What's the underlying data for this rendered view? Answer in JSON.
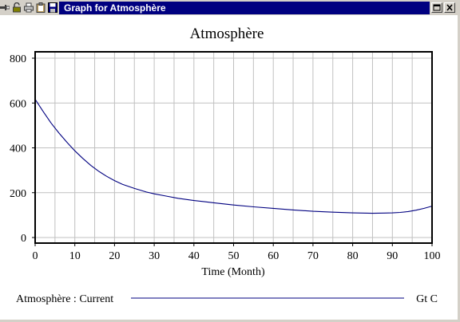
{
  "window": {
    "title": "Graph for Atmosphère",
    "toolbar_icons": [
      "pin-icon",
      "lock-icon",
      "print-icon",
      "clipboard-icon",
      "save-icon"
    ],
    "controls": [
      "restore-icon",
      "close-icon"
    ]
  },
  "colors": {
    "titlebar_active": "#000080",
    "series_line": "#000080",
    "grid": "#c0c0c0"
  },
  "chart_data": {
    "type": "line",
    "title": "Atmosphère",
    "xlabel": "Time (Month)",
    "ylabel": "",
    "xlim": [
      0,
      100
    ],
    "ylim": [
      0,
      800
    ],
    "x_ticks": [
      0,
      10,
      20,
      30,
      40,
      50,
      60,
      70,
      80,
      90,
      100
    ],
    "x_tick_labels": [
      "0",
      "10",
      "20",
      "30",
      "40",
      "50",
      "60",
      "70",
      "80",
      "90",
      "100"
    ],
    "x_grid": [
      0,
      5,
      10,
      15,
      20,
      25,
      30,
      35,
      40,
      45,
      50,
      55,
      60,
      65,
      70,
      75,
      80,
      85,
      90,
      95,
      100
    ],
    "y_ticks": [
      0,
      200,
      400,
      600,
      800
    ],
    "y_tick_labels": [
      "0",
      "200",
      "400",
      "600",
      "800"
    ],
    "y_grid": [
      0,
      200,
      400,
      600,
      800
    ],
    "grid": true,
    "series": [
      {
        "name": "Atmosphère : Current",
        "unit": "Gt C",
        "color": "#000080",
        "x": [
          0,
          2,
          4,
          6,
          8,
          10,
          12,
          14,
          16,
          18,
          20,
          22,
          25,
          28,
          30,
          33,
          36,
          40,
          45,
          50,
          55,
          60,
          65,
          70,
          75,
          80,
          85,
          88,
          90,
          92,
          94,
          96,
          98,
          100
        ],
        "y": [
          617,
          563,
          511,
          466,
          425,
          387,
          353,
          322,
          296,
          273,
          254,
          237,
          219,
          203,
          195,
          185,
          175,
          165,
          155,
          145,
          137,
          130,
          123,
          117,
          113,
          110,
          108,
          109,
          110,
          112,
          116,
          122,
          130,
          140
        ]
      }
    ]
  }
}
